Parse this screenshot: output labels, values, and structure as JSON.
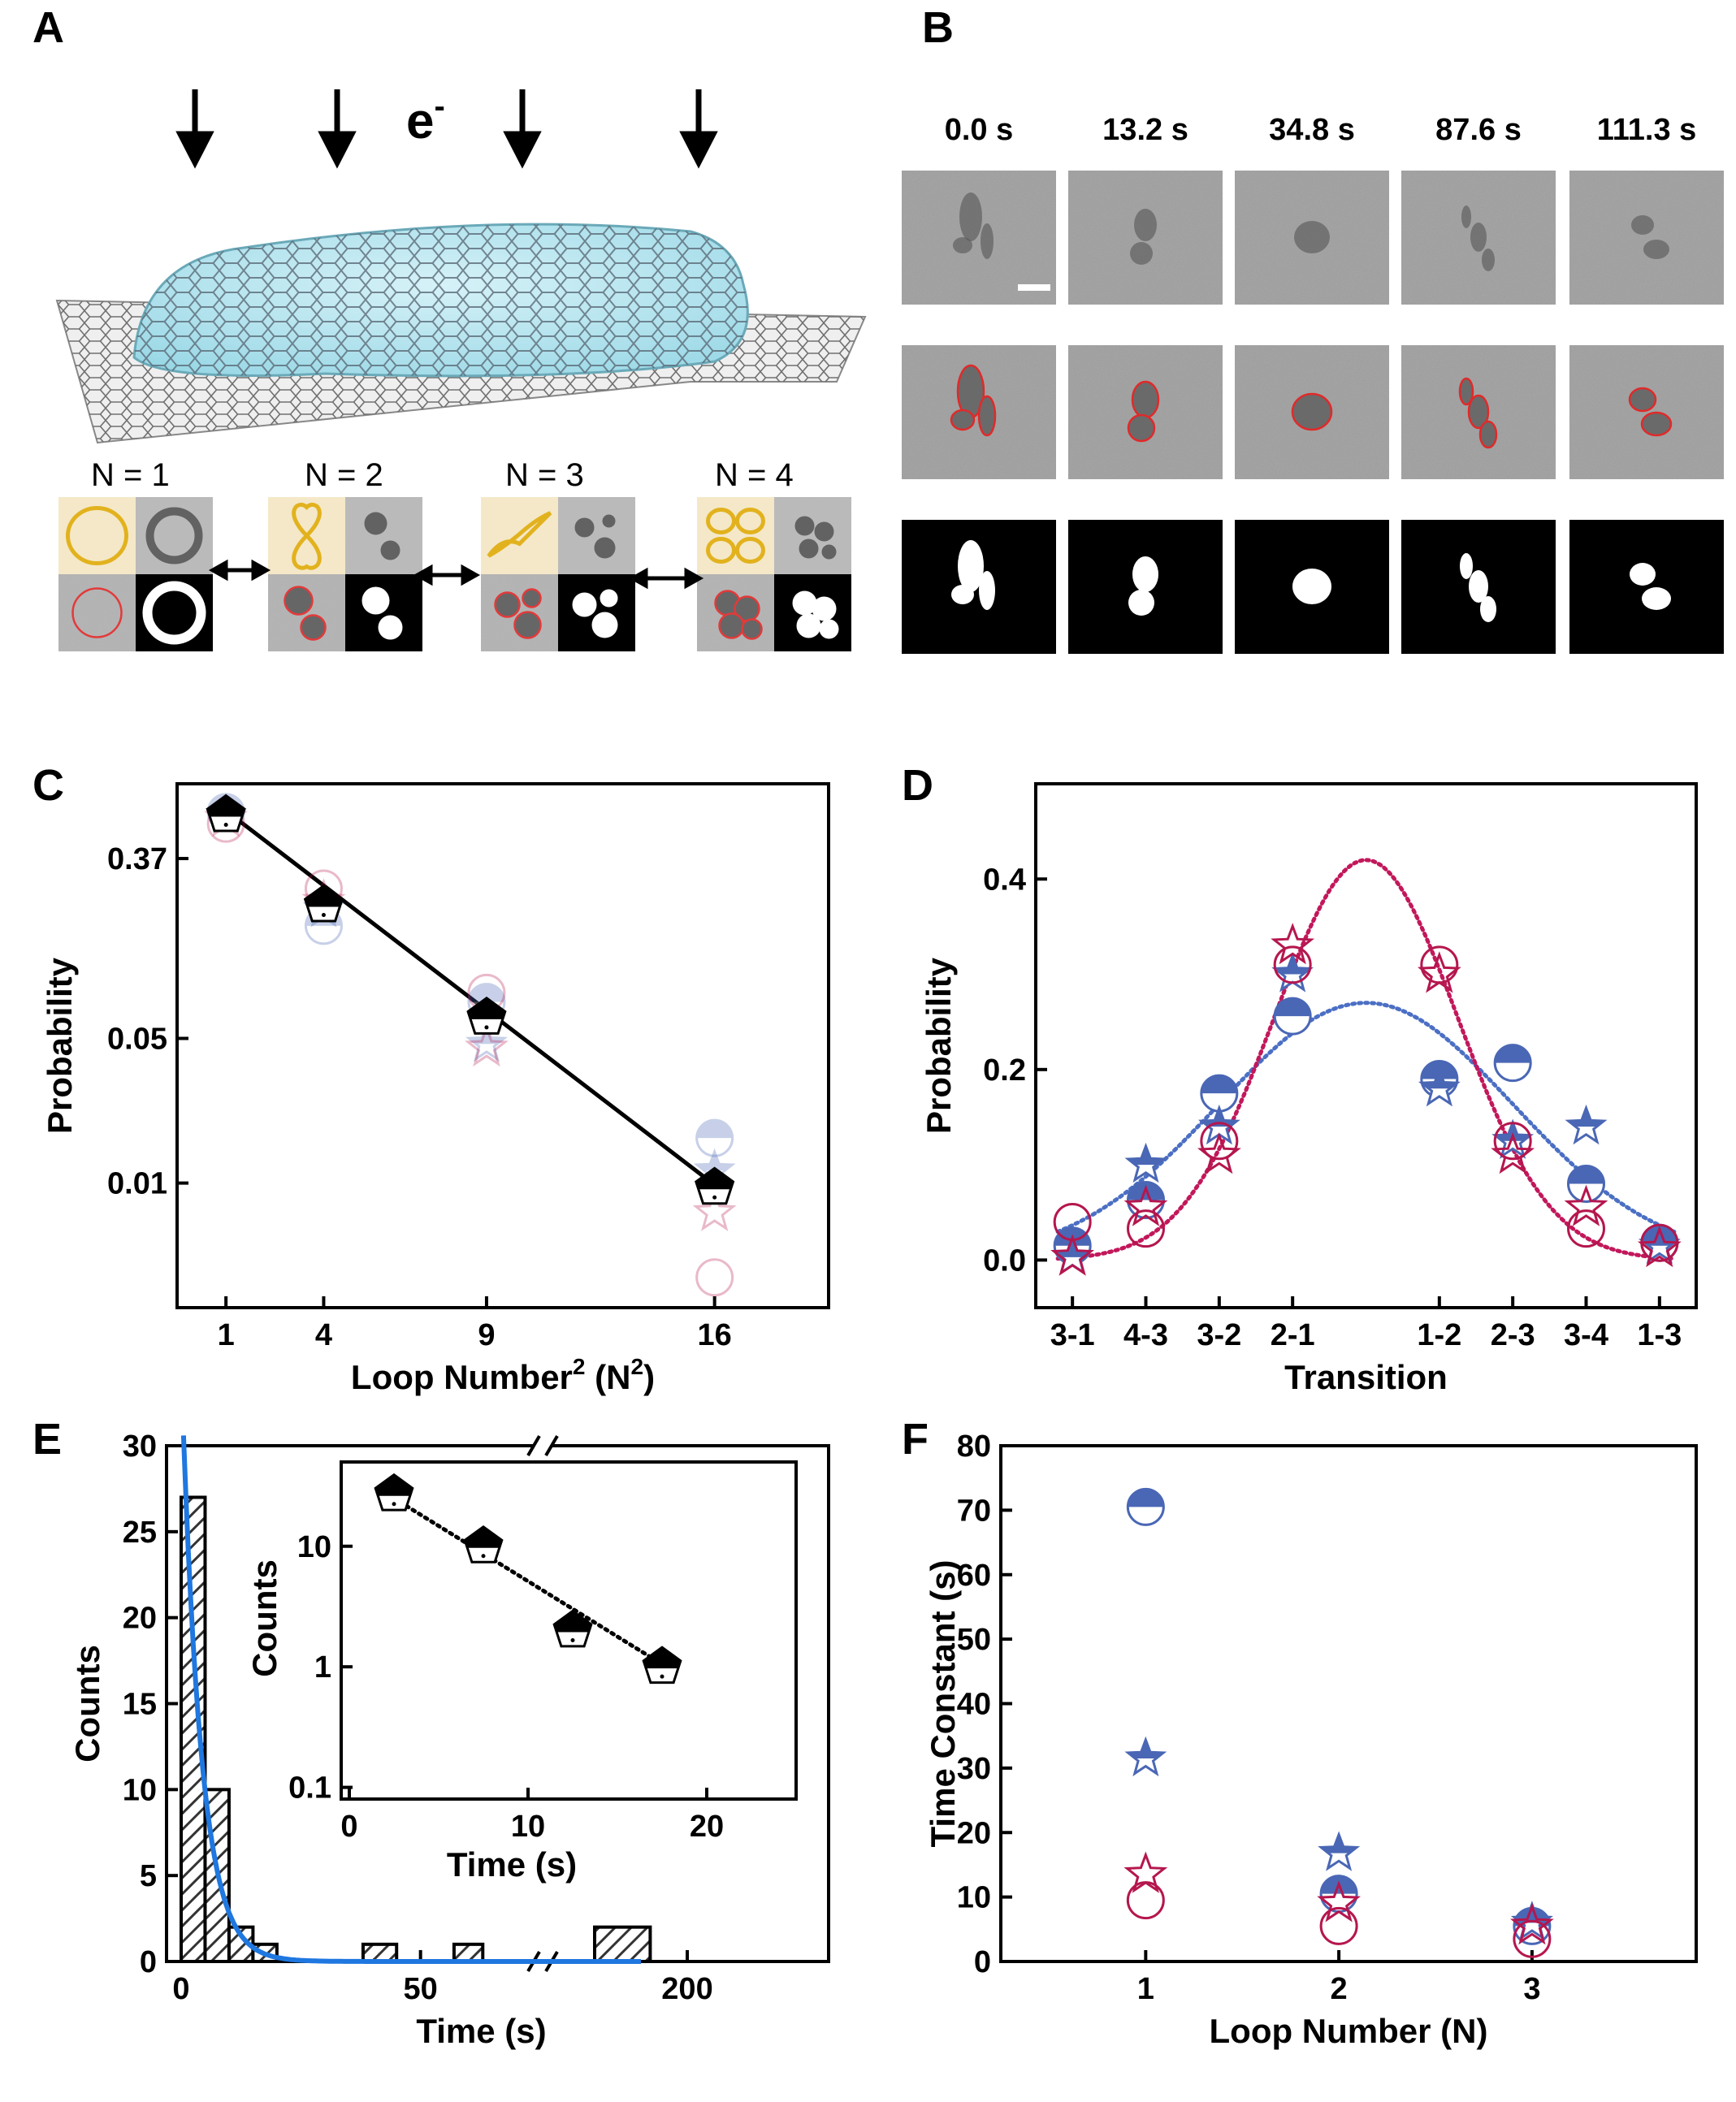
{
  "colors": {
    "blue": "#4a67b5",
    "red": "#b5164e",
    "bluefit": "#4b6fc4",
    "redfit": "#c2185b",
    "hist_line": "#1f77e0",
    "black": "#000000",
    "loop_yellow": "#e2b21e"
  },
  "panelA": {
    "label": "A",
    "electron": "e",
    "electron_sup": "-",
    "n_labels": [
      "N = 1",
      "N = 2",
      "N = 3",
      "N = 4"
    ]
  },
  "panelB": {
    "label": "B",
    "times": [
      "0.0 s",
      "13.2 s",
      "34.8 s",
      "87.6 s",
      "111.3 s"
    ]
  },
  "chart_data": [
    {
      "panel": "C",
      "type": "scatter",
      "title": "",
      "xlabel": "Loop Number",
      "xlabel_sup": "2",
      "xlabel_suffix": " (N",
      "xlabel_suffix_sup": "2",
      "xlabel_end": ")",
      "ylabel": "Probability",
      "yscale": "log",
      "xticks": [
        1,
        4,
        9,
        16
      ],
      "xtick_labels": [
        "1",
        "4",
        "9",
        "16"
      ],
      "yticks": [
        0.37,
        0.05,
        0.01
      ],
      "ytick_labels": [
        "0.37",
        "0.05",
        "0.01"
      ],
      "series": [
        {
          "name": "mean",
          "marker": "pentagon",
          "x": [
            1,
            4,
            9,
            16
          ],
          "y": [
            0.6,
            0.22,
            0.063,
            0.0095
          ]
        },
        {
          "name": "blue-half-circle",
          "marker": "halfcircle-faded",
          "x": [
            1,
            4,
            9,
            16
          ],
          "y": [
            0.62,
            0.175,
            0.075,
            0.0165
          ]
        },
        {
          "name": "blue-star",
          "marker": "star-faded",
          "x": [
            1,
            4,
            9,
            16
          ],
          "y": [
            0.6,
            0.21,
            0.047,
            0.0115
          ]
        },
        {
          "name": "red-circle",
          "marker": "circle-faded-red",
          "x": [
            1,
            4,
            9,
            16
          ],
          "y": [
            0.545,
            0.265,
            0.083,
            0.0035
          ]
        },
        {
          "name": "red-star",
          "marker": "star-faded-red",
          "x": [
            1,
            4,
            9,
            16
          ],
          "y": [
            0.58,
            0.23,
            0.045,
            0.0072
          ]
        }
      ],
      "fit": {
        "x": [
          1,
          16
        ],
        "y": [
          0.63,
          0.0098
        ]
      }
    },
    {
      "panel": "D",
      "type": "scatter",
      "title": "",
      "xlabel": "Transition",
      "ylabel": "Probability",
      "categories": [
        "3-1",
        "4-3",
        "3-2",
        "2-1",
        "1-2",
        "2-3",
        "3-4",
        "1-3"
      ],
      "category_positions": [
        0,
        1,
        2,
        3,
        5,
        6,
        7,
        8
      ],
      "ylim": [
        -0.05,
        0.5
      ],
      "yticks": [
        0.0,
        0.2,
        0.4
      ],
      "ytick_labels": [
        "0.0",
        "0.2",
        "0.4"
      ],
      "series": [
        {
          "name": "blue-half-circle",
          "marker": "halfcircle",
          "values": [
            0.015,
            0.063,
            0.175,
            0.256,
            0.19,
            0.207,
            0.08,
            0.018
          ]
        },
        {
          "name": "blue-star",
          "marker": "star-blue",
          "values": [
            0.003,
            0.1,
            0.14,
            0.3,
            0.18,
            0.125,
            0.14,
            0.015
          ]
        },
        {
          "name": "red-circle",
          "marker": "circle-red",
          "values": [
            0.04,
            0.033,
            0.125,
            0.31,
            0.31,
            0.125,
            0.033,
            0.018
          ]
        },
        {
          "name": "red-star",
          "marker": "star-red",
          "values": [
            0.003,
            0.055,
            0.11,
            0.33,
            0.3,
            0.11,
            0.055,
            0.012
          ]
        }
      ],
      "fits": [
        {
          "name": "blue-fit",
          "color": "bluefit",
          "amp": 0.27,
          "center": 4.0,
          "sigma": 2.0,
          "offset": 0.0
        },
        {
          "name": "red-fit",
          "color": "redfit",
          "amp": 0.42,
          "center": 4.0,
          "sigma": 1.25,
          "offset": 0.0
        }
      ]
    },
    {
      "panel": "E",
      "type": "bar",
      "title": "",
      "xlabel": "Time (s)",
      "ylabel": "Counts",
      "ylim": [
        0,
        30
      ],
      "yticks": [
        0,
        5,
        10,
        15,
        20,
        25,
        30
      ],
      "xtick_labels": [
        "0",
        "50",
        "200"
      ],
      "bins": [
        {
          "start": 0,
          "end": 5,
          "count": 27
        },
        {
          "start": 5,
          "end": 10,
          "count": 10
        },
        {
          "start": 10,
          "end": 15,
          "count": 2
        },
        {
          "start": 15,
          "end": 20,
          "count": 1
        },
        {
          "start": 38,
          "end": 45,
          "count": 1
        },
        {
          "start": 57,
          "end": 63,
          "count": 1
        },
        {
          "start": 190,
          "end": 196,
          "count": 2
        }
      ],
      "fit": {
        "amp": 27,
        "tau": 4.0
      },
      "inset": {
        "type": "scatter",
        "xlabel": "Time (s)",
        "ylabel": "Counts",
        "yscale": "log",
        "xlim": [
          0,
          25
        ],
        "xticks": [
          0,
          10,
          20
        ],
        "xtick_labels": [
          "0",
          "10",
          "20"
        ],
        "yticks": [
          0.1,
          1,
          10
        ],
        "ytick_labels": [
          "0.1",
          "1",
          "10"
        ],
        "x": [
          2.5,
          7.5,
          12.5,
          17.5
        ],
        "y": [
          27,
          10,
          2,
          1
        ]
      }
    },
    {
      "panel": "F",
      "type": "scatter",
      "title": "",
      "xlabel": "Loop Number (N)",
      "ylabel": "Time Constant (s)",
      "ylim": [
        0,
        80
      ],
      "yticks": [
        0,
        10,
        20,
        30,
        40,
        50,
        60,
        70,
        80
      ],
      "xticks": [
        1,
        2,
        3
      ],
      "xtick_labels": [
        "1",
        "2",
        "3"
      ],
      "series": [
        {
          "name": "blue-half-circle",
          "marker": "halfcircle",
          "x": [
            1,
            2,
            3
          ],
          "y": [
            70.5,
            10.5,
            5.5
          ]
        },
        {
          "name": "blue-star",
          "marker": "star-blue",
          "x": [
            1,
            2,
            3
          ],
          "y": [
            31.5,
            16.8,
            6.0
          ]
        },
        {
          "name": "red-circle",
          "marker": "circle-red",
          "x": [
            1,
            2,
            3
          ],
          "y": [
            9.5,
            5.5,
            3.5
          ]
        },
        {
          "name": "red-star",
          "marker": "star-red",
          "x": [
            1,
            2,
            3
          ],
          "y": [
            13.5,
            9.0,
            5.5
          ]
        }
      ]
    }
  ]
}
